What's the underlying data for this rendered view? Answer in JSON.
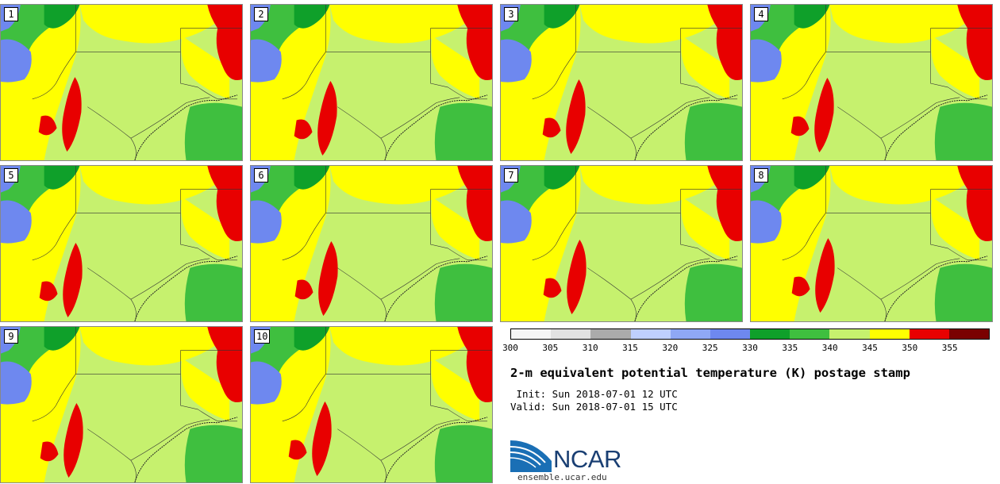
{
  "panels": [
    {
      "label": "1"
    },
    {
      "label": "2"
    },
    {
      "label": "3"
    },
    {
      "label": "4"
    },
    {
      "label": "5"
    },
    {
      "label": "6"
    },
    {
      "label": "7"
    },
    {
      "label": "8"
    },
    {
      "label": "9"
    },
    {
      "label": "10"
    }
  ],
  "colorbar": {
    "ticks": [
      "300",
      "305",
      "310",
      "315",
      "320",
      "325",
      "330",
      "335",
      "340",
      "345",
      "350",
      "355"
    ],
    "colors": [
      "#f5f5f5",
      "#e2e2e2",
      "#ababab",
      "#bfd0ff",
      "#8fa8f5",
      "#6e88ef",
      "#0fa02a",
      "#3fbf3f",
      "#c6f16e",
      "#ffff00",
      "#e80000",
      "#7a0000"
    ]
  },
  "title": "2-m equivalent potential temperature (K) postage stamp",
  "init": " Init: Sun 2018-07-01 12 UTC",
  "valid": "Valid: Sun 2018-07-01 15 UTC",
  "logo": {
    "text": "NCAR",
    "site": "ensemble.ucar.edu"
  },
  "colors": {
    "blue": "#6e88ef",
    "dark_green": "#0fa02a",
    "green": "#3fbf3f",
    "light_green": "#c6f16e",
    "yellow": "#ffff00",
    "red": "#e80000"
  }
}
